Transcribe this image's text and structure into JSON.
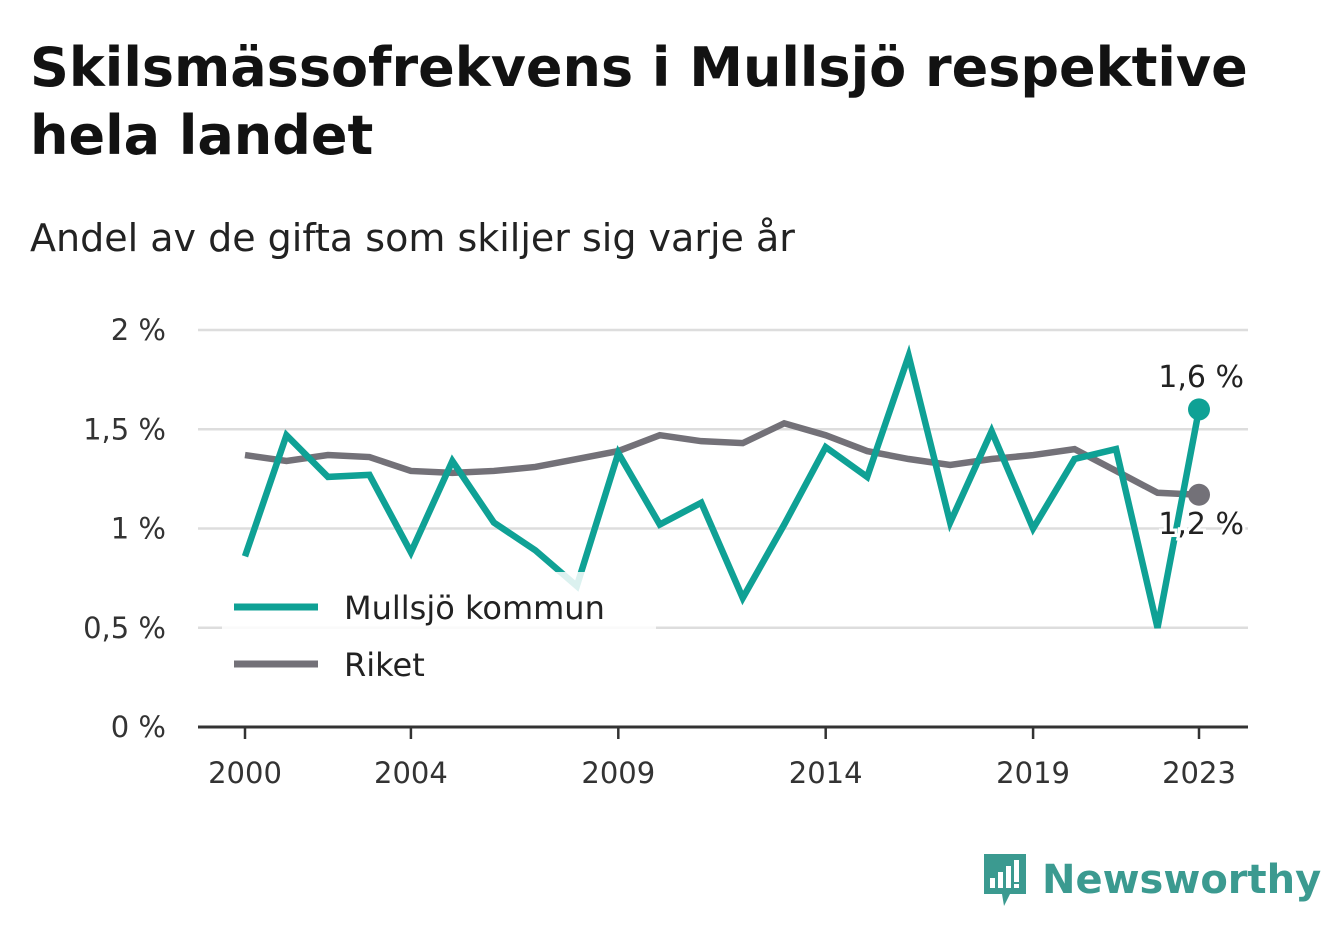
{
  "title": "Skilsmässofrekvens i Mullsjö respektive hela landet",
  "subtitle": "Andel av de gifta som skiljer sig varje år",
  "brand": "Newsworthy",
  "colors": {
    "mullsjo": "#0fa195",
    "riket": "#737178",
    "grid": "#dddddd",
    "axis": "#333333"
  },
  "chart_data": {
    "type": "line",
    "x": [
      2000,
      2001,
      2002,
      2003,
      2004,
      2005,
      2006,
      2007,
      2008,
      2009,
      2010,
      2011,
      2012,
      2013,
      2014,
      2015,
      2016,
      2017,
      2018,
      2019,
      2020,
      2021,
      2022,
      2023
    ],
    "x_ticks": [
      2000,
      2004,
      2009,
      2014,
      2019,
      2023
    ],
    "x_tick_labels": [
      "2000",
      "2004",
      "2009",
      "2014",
      "2019",
      "2023"
    ],
    "y_ticks": [
      0,
      0.5,
      1,
      1.5,
      2
    ],
    "y_tick_labels": [
      "0 %",
      "0,5 %",
      "1 %",
      "1,5 %",
      "2 %"
    ],
    "ylim": [
      0,
      2
    ],
    "xlim": [
      2000,
      2023
    ],
    "grid": true,
    "legend_position": "bottom-left",
    "series": [
      {
        "name": "Mullsjö kommun",
        "color": "#0fa195",
        "values": [
          0.86,
          1.47,
          1.26,
          1.27,
          0.88,
          1.34,
          1.03,
          0.89,
          0.71,
          1.38,
          1.02,
          1.13,
          0.65,
          1.02,
          1.41,
          1.26,
          1.87,
          1.03,
          1.49,
          1.0,
          1.35,
          1.4,
          0.5,
          1.6
        ],
        "end_label": "1,6 %"
      },
      {
        "name": "Riket",
        "color": "#737178",
        "values": [
          1.37,
          1.34,
          1.37,
          1.36,
          1.29,
          1.28,
          1.29,
          1.31,
          1.35,
          1.39,
          1.47,
          1.44,
          1.43,
          1.53,
          1.47,
          1.39,
          1.35,
          1.32,
          1.35,
          1.37,
          1.4,
          1.29,
          1.18,
          1.17
        ],
        "end_label": "1,2 %"
      }
    ]
  }
}
